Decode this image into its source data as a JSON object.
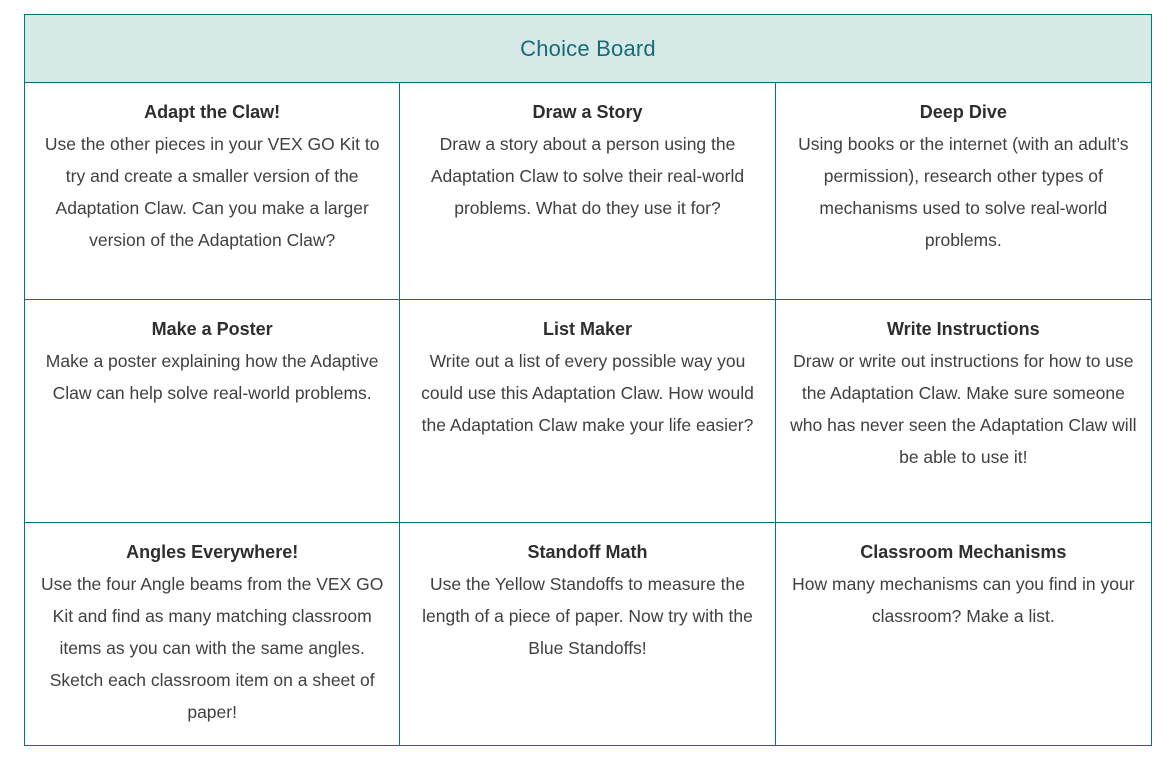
{
  "header": {
    "title": "Choice Board"
  },
  "colors": {
    "border": "#00737d",
    "header_bg": "#d6e9e7",
    "header_text": "#186a79",
    "title_text": "#2e2e2e",
    "body_text": "#404040",
    "page_bg": "#ffffff"
  },
  "board": {
    "rows": [
      [
        {
          "title": "Adapt the Claw!",
          "body": "Use the other pieces in your VEX GO Kit to try and create a smaller version of the Adaptation Claw. Can you make a larger version of the Adaptation Claw?"
        },
        {
          "title": "Draw a Story",
          "body": "Draw a story about a person using the Adaptation Claw to solve their real-world problems. What do they use it for?"
        },
        {
          "title": "Deep Dive",
          "body": "Using books or the internet (with an adult’s permission), research other types of mechanisms used to solve real-world problems."
        }
      ],
      [
        {
          "title": "Make a Poster",
          "body": "Make a poster explaining how the Adaptive Claw can help solve real-world problems."
        },
        {
          "title": "List Maker",
          "body": "Write out a list of every possible way you could use this Adaptation Claw. How would the Adaptation Claw make your life easier?"
        },
        {
          "title": "Write Instructions",
          "body": "Draw or write out instructions for how to use the Adaptation Claw. Make sure someone who has never seen the Adaptation Claw will be able to use it!"
        }
      ],
      [
        {
          "title": "Angles Everywhere!",
          "body": "Use the four Angle beams from the VEX GO Kit and find as many matching classroom items as you can with the same angles. Sketch each classroom item on a sheet of paper!"
        },
        {
          "title": "Standoff Math",
          "body": "Use the Yellow Standoffs to measure the length of a piece of paper. Now try with the Blue Standoffs!"
        },
        {
          "title": "Classroom Mechanisms",
          "body": "How many mechanisms can you find in your classroom? Make a list."
        }
      ]
    ]
  }
}
